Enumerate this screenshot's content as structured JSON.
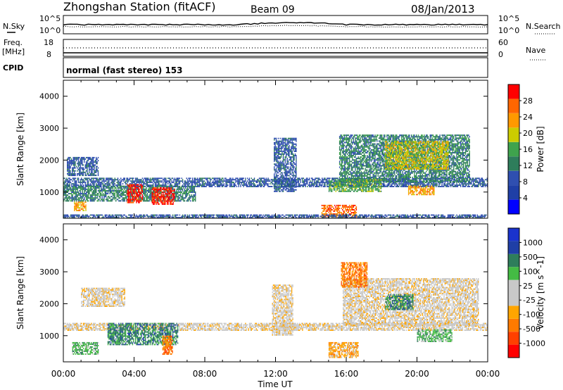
{
  "header": {
    "station": "Zhongshan Station (fitACF)",
    "beam": "Beam 09",
    "date": "08/Jan/2013"
  },
  "noise_panel": {
    "left_label": "N.Sky",
    "left_ticks": [
      "10^5",
      "10^0"
    ],
    "right_ticks": [
      "10^5",
      "10^0"
    ],
    "right_label": "N.Search"
  },
  "freq_panel": {
    "left_label_1": "Freq.",
    "left_label_2": "[MHz]",
    "left_ticks": [
      "18",
      "8"
    ],
    "right_ticks": [
      "60",
      "0"
    ],
    "right_label": "Nave"
  },
  "cpid_panel": {
    "label": "CPID",
    "mode_text": "normal (fast stereo) 153"
  },
  "colors": {
    "power_scale": [
      "#0000ff",
      "#1f3fa6",
      "#2f4fb0",
      "#2e7d5b",
      "#3fa34d",
      "#cccc00",
      "#ff9900",
      "#ff6600",
      "#ff0000"
    ],
    "velocity_scale": [
      "#ff0000",
      "#ff4000",
      "#ff7a00",
      "#ffa500",
      "#c8c8c8",
      "#c8c8c8",
      "#44bb44",
      "#2e7d5b",
      "#1f3fa6",
      "#1a33cc"
    ],
    "ground_scatter": "#c8c8c8"
  },
  "chart_data": [
    {
      "type": "heatmap",
      "name": "power",
      "xlabel": "Time UT",
      "ylabel": "Slant Range [km]",
      "colorbar_label": "Power [dB]",
      "colorbar_ticks": [
        "28",
        "24",
        "20",
        "16",
        "12",
        "8",
        "4"
      ],
      "ylim": [
        180,
        4500
      ],
      "yticks": [
        "4000",
        "3000",
        "2000",
        "1000"
      ],
      "xlim_hours": [
        0,
        24
      ],
      "xticks": [
        "00:00",
        "04:00",
        "08:00",
        "12:00",
        "16:00",
        "20:00",
        "00:00"
      ],
      "regions": [
        {
          "t0": 0.2,
          "t1": 2.0,
          "r0": 1500,
          "r1": 2100,
          "level": 2
        },
        {
          "t0": 0.0,
          "t1": 24.0,
          "r0": 1150,
          "r1": 1450,
          "level": 2
        },
        {
          "t0": 0.0,
          "t1": 7.5,
          "r0": 700,
          "r1": 1200,
          "level": 3
        },
        {
          "t0": 3.6,
          "t1": 4.5,
          "r0": 650,
          "r1": 1250,
          "level": 8
        },
        {
          "t0": 5.0,
          "t1": 6.3,
          "r0": 600,
          "r1": 1150,
          "level": 8
        },
        {
          "t0": 0.6,
          "t1": 1.3,
          "r0": 400,
          "r1": 700,
          "level": 6
        },
        {
          "t0": 11.9,
          "t1": 13.2,
          "r0": 1000,
          "r1": 2700,
          "level": 2
        },
        {
          "t0": 14.6,
          "t1": 16.6,
          "r0": 200,
          "r1": 600,
          "level": 7
        },
        {
          "t0": 15.6,
          "t1": 23.0,
          "r0": 1300,
          "r1": 2800,
          "level": 3
        },
        {
          "t0": 18.2,
          "t1": 21.8,
          "r0": 1700,
          "r1": 2600,
          "level": 5
        },
        {
          "t0": 19.5,
          "t1": 21.0,
          "r0": 900,
          "r1": 1200,
          "level": 6
        },
        {
          "t0": 15.0,
          "t1": 18.0,
          "r0": 1000,
          "r1": 1400,
          "level": 4
        },
        {
          "t0": 0.0,
          "t1": 24.0,
          "r0": 180,
          "r1": 300,
          "level": 2
        }
      ]
    },
    {
      "type": "heatmap",
      "name": "velocity",
      "xlabel": "Time UT",
      "ylabel": "Slant Range [km]",
      "colorbar_label": "Velocity [m s^-1]",
      "colorbar_ticks": [
        "1000",
        "500",
        "100",
        "25",
        "-25",
        "-100",
        "-500",
        "-1000"
      ],
      "ylim": [
        180,
        4500
      ],
      "yticks": [
        "4000",
        "3000",
        "2000",
        "1000"
      ],
      "xlim_hours": [
        0,
        24
      ],
      "xticks": [
        "00:00",
        "04:00",
        "08:00",
        "12:00",
        "16:00",
        "20:00",
        "00:00"
      ],
      "regions": [
        {
          "t0": 0.0,
          "t1": 24.0,
          "r0": 1150,
          "r1": 1400,
          "level": 4
        },
        {
          "t0": 1.0,
          "t1": 3.5,
          "r0": 1900,
          "r1": 2500,
          "level": 4
        },
        {
          "t0": 2.5,
          "t1": 6.5,
          "r0": 700,
          "r1": 1400,
          "level": 7
        },
        {
          "t0": 0.5,
          "t1": 2.0,
          "r0": 400,
          "r1": 800,
          "level": 6
        },
        {
          "t0": 5.6,
          "t1": 6.2,
          "r0": 400,
          "r1": 1000,
          "level": 2
        },
        {
          "t0": 11.8,
          "t1": 13.0,
          "r0": 1000,
          "r1": 2600,
          "level": 4
        },
        {
          "t0": 15.0,
          "t1": 16.7,
          "r0": 300,
          "r1": 800,
          "level": 3
        },
        {
          "t0": 15.8,
          "t1": 23.5,
          "r0": 1300,
          "r1": 2800,
          "level": 4
        },
        {
          "t0": 18.2,
          "t1": 19.8,
          "r0": 1800,
          "r1": 2300,
          "level": 7
        },
        {
          "t0": 15.7,
          "t1": 17.2,
          "r0": 2500,
          "r1": 3300,
          "level": 2
        },
        {
          "t0": 20.0,
          "t1": 22.0,
          "r0": 800,
          "r1": 1200,
          "level": 6
        }
      ]
    }
  ]
}
